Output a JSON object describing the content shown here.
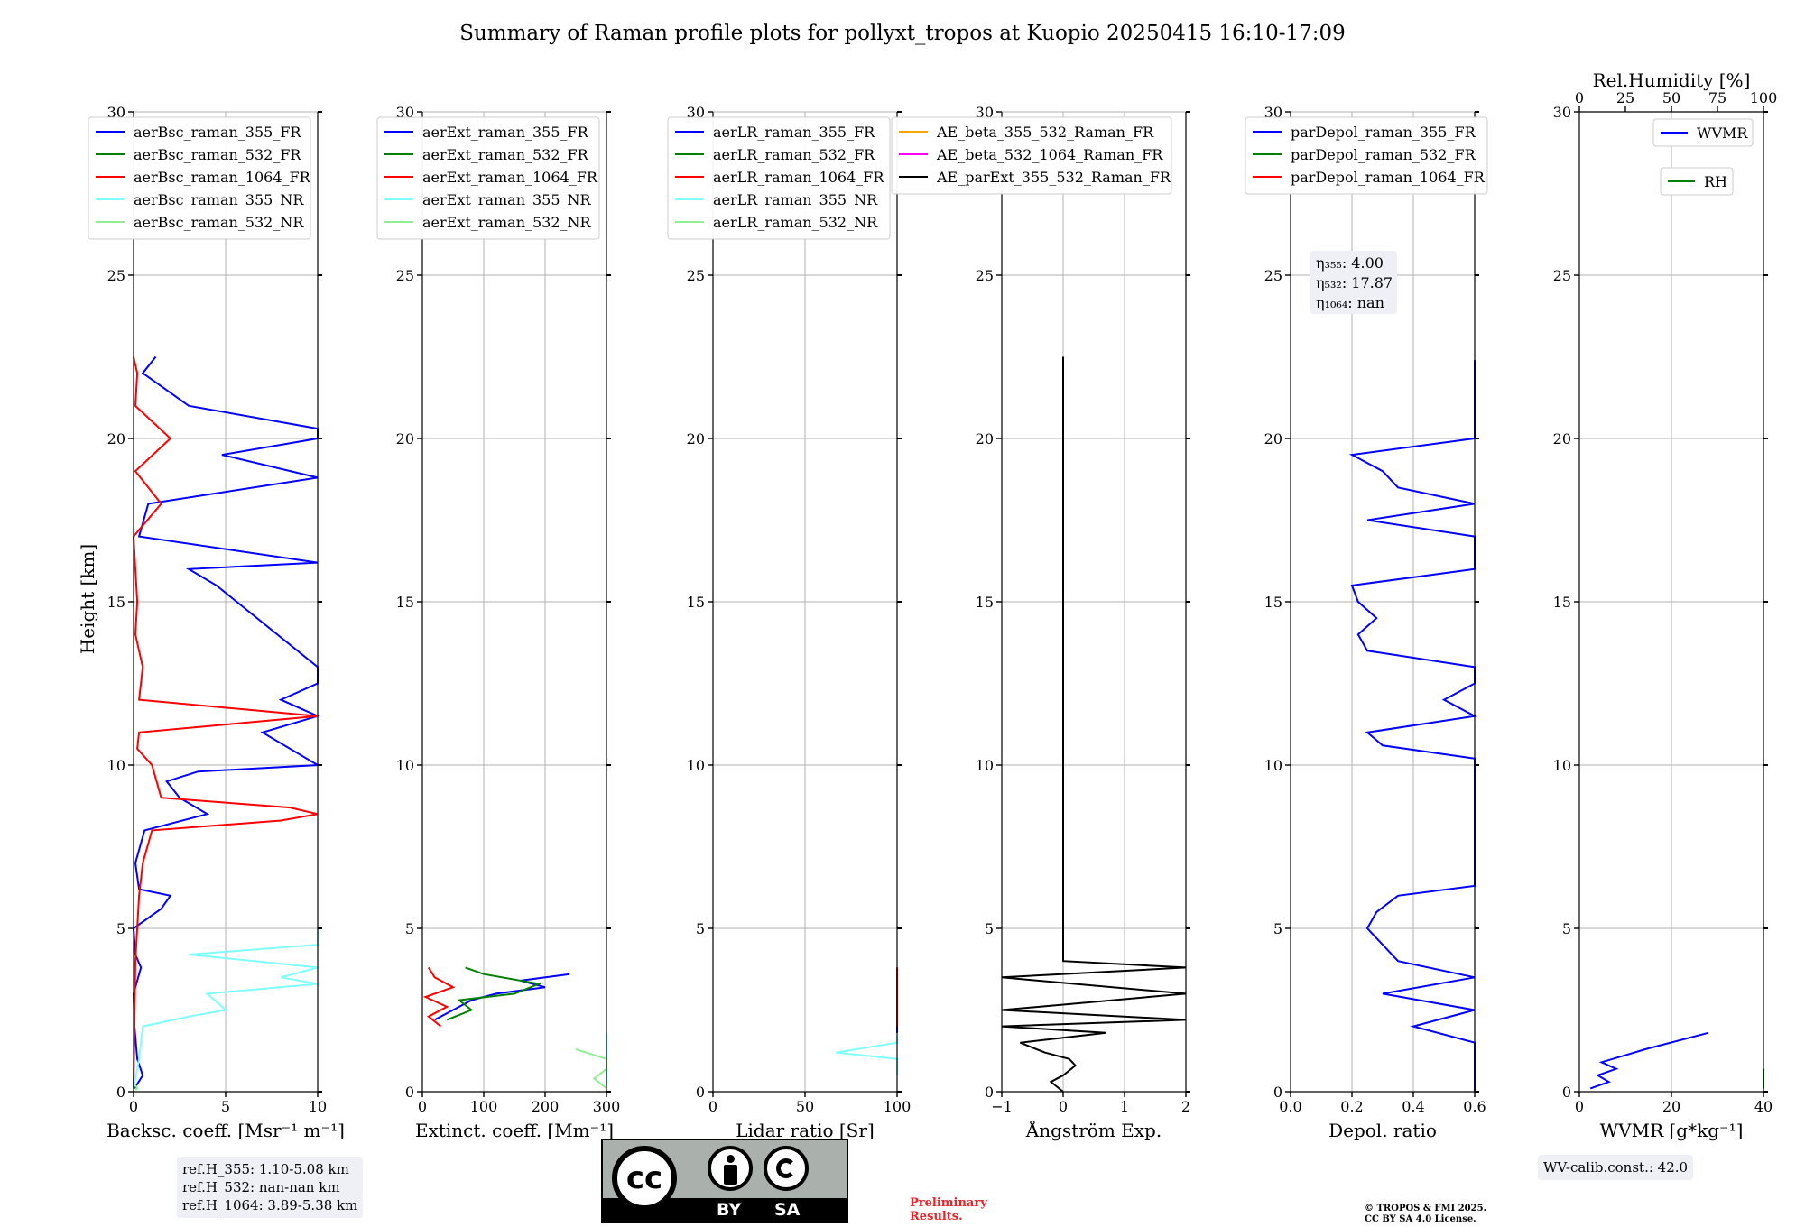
{
  "title": "Summary of Raman profile plots for pollyxt_tropos at Kuopio 20250415 16:10-17:09",
  "ylabel": "Height [km]",
  "colors": {
    "355_FR": "#0000ff",
    "532_FR": "#008000",
    "1064_FR": "#ff0000",
    "355_NR": "#80ffff",
    "532_NR": "#90ee90",
    "AE_355_532": "#ffa500",
    "AE_532_1064": "#ff00ff",
    "AE_ext": "#000000",
    "RH": "#008000"
  },
  "chart_data": [
    {
      "type": "line",
      "xlabel": "Backsc. coeff. [Msr⁻¹ m⁻¹]",
      "xlim": [
        0,
        10
      ],
      "xticks": [
        "0",
        "5",
        "10"
      ],
      "ylim": [
        0,
        30
      ],
      "yticks": [
        "0",
        "5",
        "10",
        "15",
        "20",
        "25",
        "30"
      ],
      "legend": [
        "aerBsc_raman_355_FR",
        "aerBsc_raman_532_FR",
        "aerBsc_raman_1064_FR",
        "aerBsc_raman_355_NR",
        "aerBsc_raman_532_NR"
      ],
      "series": [
        {
          "name": "aerBsc_raman_355_FR",
          "color": "#0000ff",
          "y": [
            0.1,
            0.5,
            1.0,
            2.0,
            3.0,
            3.8,
            4.2,
            5.0,
            5.6,
            6.0,
            6.2,
            7.0,
            8.0,
            8.5,
            9.0,
            9.5,
            9.8,
            10.0,
            11.0,
            11.5,
            12.0,
            12.5,
            13.0,
            15.5,
            16.0,
            16.2,
            17.0,
            18.0,
            18.8,
            19.5,
            20.0,
            20.3,
            21.0,
            22.0,
            22.5
          ],
          "x": [
            0.05,
            0.5,
            0.2,
            0.05,
            0.0,
            0.4,
            0.1,
            0.0,
            1.5,
            2.0,
            0.3,
            0.1,
            0.6,
            4.0,
            2.5,
            1.8,
            3.5,
            10,
            7.0,
            10,
            8.0,
            10,
            10,
            4.5,
            3.0,
            10,
            0.3,
            0.8,
            10,
            4.8,
            10,
            10,
            3.0,
            0.5,
            1.2
          ]
        },
        {
          "name": "aerBsc_raman_1064_FR",
          "color": "#ff0000",
          "y": [
            0.1,
            2.0,
            4.0,
            6.0,
            7.0,
            8.0,
            8.3,
            8.5,
            8.7,
            9.0,
            10.0,
            10.5,
            11.0,
            11.5,
            12.0,
            13.0,
            14.0,
            15.0,
            16.0,
            17.0,
            18.0,
            19.0,
            20.0,
            21.0,
            22.0,
            22.5
          ],
          "x": [
            0.0,
            0.05,
            0.1,
            0.3,
            0.5,
            1.0,
            8.0,
            10,
            8.5,
            1.5,
            1.0,
            0.2,
            0.3,
            10,
            0.3,
            0.5,
            0.1,
            0.2,
            0.1,
            0.0,
            1.5,
            0.1,
            2.0,
            0.1,
            0.2,
            0.0
          ]
        },
        {
          "name": "aerBsc_raman_355_NR",
          "color": "#80ffff",
          "y": [
            0.1,
            1.0,
            2.0,
            2.3,
            2.5,
            3.0,
            3.3,
            3.5,
            3.8,
            4.2,
            4.5,
            4.8,
            5.0
          ],
          "x": [
            0.0,
            0.3,
            0.5,
            3.0,
            5.0,
            4.0,
            10,
            8.0,
            10,
            3.0,
            10,
            10,
            10
          ]
        },
        {
          "name": "aerBsc_raman_532_NR",
          "color": "#90ee90",
          "y": [
            0.05,
            0.1,
            0.2
          ],
          "x": [
            0.1,
            0.2,
            0.1
          ]
        }
      ]
    },
    {
      "type": "line",
      "xlabel": "Extinct. coeff. [Mm⁻¹]",
      "xlim": [
        0,
        300
      ],
      "xticks": [
        "0",
        "100",
        "200",
        "300"
      ],
      "ylim": [
        0,
        30
      ],
      "yticks": [
        "0",
        "5",
        "10",
        "15",
        "20",
        "25",
        "30"
      ],
      "legend": [
        "aerExt_raman_355_FR",
        "aerExt_raman_532_FR",
        "aerExt_raman_1064_FR",
        "aerExt_raman_355_NR",
        "aerExt_raman_532_NR"
      ],
      "series": [
        {
          "name": "aerExt_raman_355_FR",
          "color": "#0000ff",
          "y": [
            2.2,
            2.5,
            2.8,
            3.0,
            3.2,
            3.4,
            3.6
          ],
          "x": [
            20,
            50,
            80,
            120,
            200,
            160,
            240
          ]
        },
        {
          "name": "aerExt_raman_532_FR",
          "color": "#008000",
          "y": [
            2.2,
            2.5,
            2.8,
            3.0,
            3.3,
            3.6,
            3.8
          ],
          "x": [
            40,
            80,
            60,
            150,
            190,
            100,
            70
          ]
        },
        {
          "name": "aerExt_raman_1064_FR",
          "color": "#ff0000",
          "y": [
            2.0,
            2.3,
            2.6,
            2.9,
            3.2,
            3.5,
            3.8
          ],
          "x": [
            30,
            10,
            40,
            5,
            50,
            20,
            10
          ]
        },
        {
          "name": "aerExt_raman_355_NR",
          "color": "#80ffff",
          "y": [
            0.2,
            0.6,
            1.0,
            1.4,
            1.8
          ],
          "x": [
            300,
            300,
            300,
            300,
            300
          ]
        },
        {
          "name": "aerExt_raman_532_NR",
          "color": "#90ee90",
          "y": [
            0.1,
            0.4,
            0.7,
            1.0,
            1.3
          ],
          "x": [
            300,
            280,
            300,
            300,
            250
          ]
        }
      ]
    },
    {
      "type": "line",
      "xlabel": "Lidar ratio [Sr]",
      "xlim": [
        0,
        120
      ],
      "xticks": [
        "0",
        "50",
        "100"
      ],
      "ylim": [
        0,
        30
      ],
      "yticks": [
        "0",
        "5",
        "10",
        "15",
        "20",
        "25",
        "30"
      ],
      "legend": [
        "aerLR_raman_355_FR",
        "aerLR_raman_532_FR",
        "aerLR_raman_1064_FR",
        "aerLR_raman_355_NR",
        "aerLR_raman_532_NR"
      ],
      "series": [
        {
          "name": "aerLR_raman_355_FR",
          "color": "#0000ff",
          "y": [
            1.8,
            2.0,
            2.5,
            2.8,
            3.0,
            3.2,
            3.5
          ],
          "x": [
            120,
            120,
            120,
            120,
            120,
            120,
            120
          ]
        },
        {
          "name": "aerLR_raman_1064_FR",
          "color": "#ff0000",
          "y": [
            2.0,
            2.2,
            2.7,
            3.0,
            3.3,
            3.6,
            3.8
          ],
          "x": [
            120,
            120,
            120,
            120,
            120,
            120,
            120
          ]
        },
        {
          "name": "aerLR_raman_355_NR",
          "color": "#80ffff",
          "y": [
            0.5,
            1.0,
            1.2,
            1.5,
            1.7
          ],
          "x": [
            120,
            120,
            80,
            120,
            120
          ]
        }
      ]
    },
    {
      "type": "line",
      "xlabel": "Ångström Exp.",
      "xlim": [
        -1,
        2
      ],
      "xticks": [
        "−1",
        "0",
        "1",
        "2"
      ],
      "ylim": [
        0,
        30
      ],
      "yticks": [
        "0",
        "5",
        "10",
        "15",
        "20",
        "25",
        "30"
      ],
      "legend": [
        "AE_beta_355_532_Raman_FR",
        "AE_beta_532_1064_Raman_FR",
        "AE_parExt_355_532_Raman_FR"
      ],
      "series": [
        {
          "name": "AE_parExt_355_532_Raman_FR",
          "color": "#000000",
          "y": [
            22.5,
            4.0,
            3.8,
            3.5,
            3.0,
            2.5,
            2.2,
            2.0,
            1.8,
            1.5,
            1.2,
            1.0,
            0.8,
            0.5,
            0.3,
            0.0
          ],
          "x": [
            0.0,
            0.0,
            2.0,
            -1.0,
            2.0,
            -1.0,
            2.0,
            -1.0,
            0.7,
            -0.7,
            -0.3,
            0.1,
            0.2,
            0.0,
            -0.2,
            0.0
          ]
        }
      ]
    },
    {
      "type": "line",
      "xlabel": "Depol. ratio",
      "xlim": [
        0.0,
        0.6
      ],
      "xticks": [
        "0.0",
        "0.2",
        "0.4",
        "0.6"
      ],
      "ylim": [
        0,
        30
      ],
      "yticks": [
        "0",
        "5",
        "10",
        "15",
        "20",
        "25",
        "30"
      ],
      "legend": [
        "parDepol_raman_355_FR",
        "parDepol_raman_532_FR",
        "parDepol_raman_1064_FR"
      ],
      "annotation": [
        "η₃₅₅: 4.00",
        "η₅₃₂: 17.87",
        "η₁₀₆₄: nan"
      ],
      "series": [
        {
          "name": "parDepol_raman_355_FR",
          "color": "#0000ff",
          "y": [
            0.0,
            0.6,
            1.5,
            2.0,
            2.5,
            3.0,
            3.5,
            4.0,
            4.5,
            5.0,
            5.5,
            6.0,
            6.3,
            7.8,
            8.5,
            9.0,
            9.8,
            10.2,
            10.6,
            11.0,
            11.5,
            12.0,
            12.5,
            13.0,
            13.5,
            14.0,
            14.5,
            15.0,
            15.5,
            16.0,
            16.5,
            17.0,
            17.5,
            18.0,
            18.5,
            19.0,
            19.5,
            20.0,
            20.5,
            21.0,
            21.5,
            22.0,
            22.4
          ],
          "x": [
            0.6,
            0.6,
            0.6,
            0.4,
            0.6,
            0.3,
            0.6,
            0.35,
            0.3,
            0.25,
            0.28,
            0.35,
            0.6,
            0.6,
            0.6,
            0.6,
            0.6,
            0.6,
            0.3,
            0.25,
            0.6,
            0.5,
            0.6,
            0.6,
            0.25,
            0.22,
            0.28,
            0.22,
            0.2,
            0.6,
            0.6,
            0.6,
            0.25,
            0.6,
            0.35,
            0.3,
            0.2,
            0.6,
            0.6,
            0.6,
            0.6,
            0.6,
            0.6
          ]
        }
      ]
    },
    {
      "type": "line",
      "xlabel": "WVMR [g*kg⁻¹]",
      "xlim": [
        0,
        50
      ],
      "xticks": [
        "0",
        "20",
        "40"
      ],
      "x2label": "Rel.Humidity [%]",
      "x2lim": [
        0,
        100
      ],
      "x2ticks": [
        "0",
        "25",
        "50",
        "75",
        "100"
      ],
      "ylim": [
        0,
        30
      ],
      "yticks": [
        "0",
        "5",
        "10",
        "15",
        "20",
        "25",
        "30"
      ],
      "legend": [
        "WVMR",
        "RH"
      ],
      "series": [
        {
          "name": "WVMR",
          "color": "#0000ff",
          "y": [
            0.1,
            0.3,
            0.5,
            0.7,
            0.9,
            1.1,
            1.3,
            1.8
          ],
          "x": [
            3,
            8,
            5,
            10,
            6,
            12,
            18,
            35
          ]
        },
        {
          "name": "RH",
          "color": "#008000",
          "y": [
            0.1,
            0.3,
            0.5,
            0.7
          ],
          "x": [
            100,
            100,
            90,
            100
          ]
        }
      ]
    }
  ],
  "refbox": [
    "ref.H_355: 1.10-5.08 km",
    "ref.H_532: nan-nan km",
    "ref.H_1064: 3.89-5.38 km"
  ],
  "wvbox": "WV-calib.const.: 42.0",
  "license": {
    "cc": "cc",
    "by": "BY",
    "sa": "SA"
  },
  "preliminary": [
    "Preliminary",
    "Results."
  ],
  "copyright": [
    "© TROPOS & FMI 2025.",
    "CC BY SA 4.0 License."
  ]
}
